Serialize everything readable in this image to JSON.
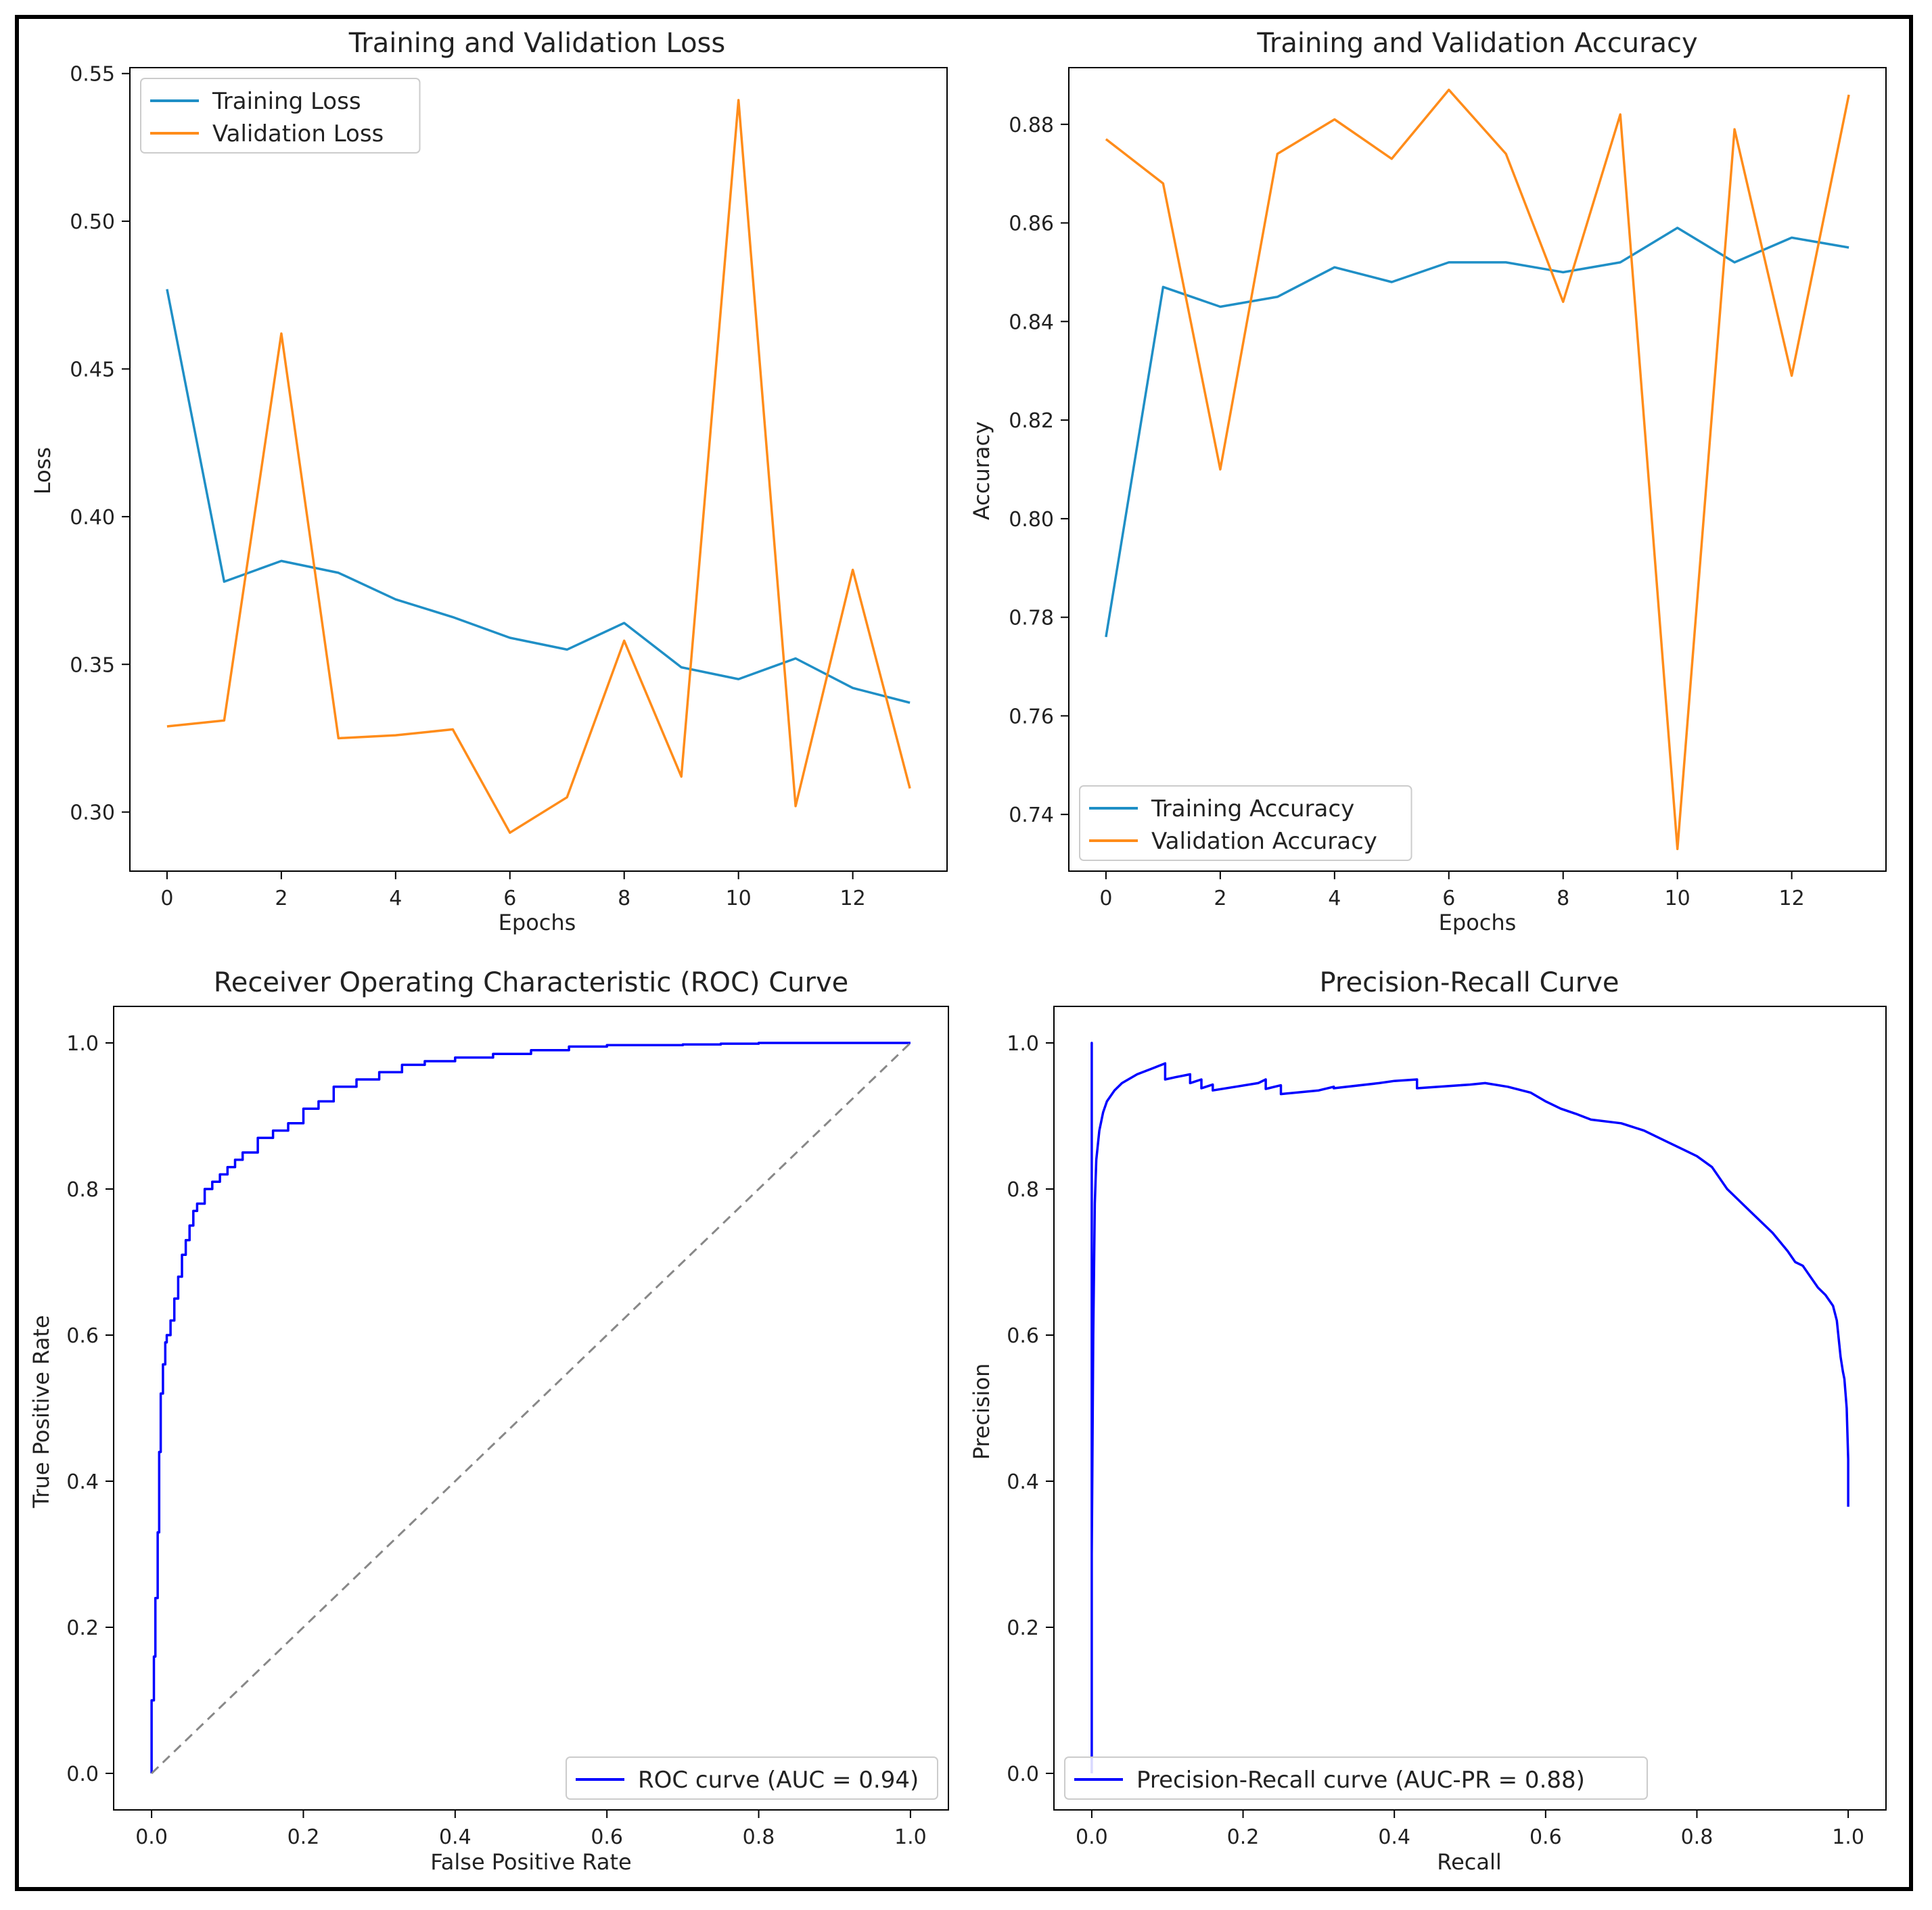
{
  "colors": {
    "training": "#1f8fc6",
    "validation": "#ff8c1a",
    "curve": "#0000ff",
    "diagonal": "#888888"
  },
  "chart_data": [
    {
      "id": "loss",
      "type": "line",
      "title": "Training and Validation Loss",
      "xlabel": "Epochs",
      "ylabel": "Loss",
      "xlim": [
        -0.65,
        13.65
      ],
      "ylim": [
        0.28,
        0.552
      ],
      "xticks": [
        0,
        2,
        4,
        6,
        8,
        10,
        12
      ],
      "xtick_labels": [
        "0",
        "2",
        "4",
        "6",
        "8",
        "10",
        "12"
      ],
      "yticks": [
        0.3,
        0.35,
        0.4,
        0.45,
        0.5,
        0.55
      ],
      "ytick_labels": [
        "0.30",
        "0.35",
        "0.40",
        "0.45",
        "0.50",
        "0.55"
      ],
      "legend_position": "top-left",
      "x": [
        0,
        1,
        2,
        3,
        4,
        5,
        6,
        7,
        8,
        9,
        10,
        11,
        12,
        13
      ],
      "series": [
        {
          "name": "Training Loss",
          "color_key": "training",
          "values": [
            0.477,
            0.378,
            0.385,
            0.381,
            0.372,
            0.366,
            0.359,
            0.355,
            0.364,
            0.349,
            0.345,
            0.352,
            0.342,
            0.337
          ]
        },
        {
          "name": "Validation Loss",
          "color_key": "validation",
          "values": [
            0.329,
            0.331,
            0.462,
            0.325,
            0.326,
            0.328,
            0.293,
            0.305,
            0.358,
            0.312,
            0.541,
            0.302,
            0.382,
            0.308
          ]
        }
      ]
    },
    {
      "id": "accuracy",
      "type": "line",
      "title": "Training and Validation Accuracy",
      "xlabel": "Epochs",
      "ylabel": "Accuracy",
      "xlim": [
        -0.65,
        13.65
      ],
      "ylim": [
        0.7285,
        0.8915
      ],
      "xticks": [
        0,
        2,
        4,
        6,
        8,
        10,
        12
      ],
      "xtick_labels": [
        "0",
        "2",
        "4",
        "6",
        "8",
        "10",
        "12"
      ],
      "yticks": [
        0.74,
        0.76,
        0.78,
        0.8,
        0.82,
        0.84,
        0.86,
        0.88
      ],
      "ytick_labels": [
        "0.74",
        "0.76",
        "0.78",
        "0.80",
        "0.82",
        "0.84",
        "0.86",
        "0.88"
      ],
      "legend_position": "bottom-left",
      "x": [
        0,
        1,
        2,
        3,
        4,
        5,
        6,
        7,
        8,
        9,
        10,
        11,
        12,
        13
      ],
      "series": [
        {
          "name": "Training Accuracy",
          "color_key": "training",
          "values": [
            0.776,
            0.847,
            0.843,
            0.845,
            0.851,
            0.848,
            0.852,
            0.852,
            0.85,
            0.852,
            0.859,
            0.852,
            0.857,
            0.855
          ]
        },
        {
          "name": "Validation Accuracy",
          "color_key": "validation",
          "values": [
            0.877,
            0.868,
            0.81,
            0.874,
            0.881,
            0.873,
            0.887,
            0.874,
            0.844,
            0.882,
            0.733,
            0.879,
            0.829,
            0.886
          ]
        }
      ]
    },
    {
      "id": "roc",
      "type": "line",
      "title": "Receiver Operating Characteristic (ROC) Curve",
      "xlabel": "False Positive Rate",
      "ylabel": "True Positive Rate",
      "xlim": [
        -0.05,
        1.05
      ],
      "ylim": [
        -0.05,
        1.05
      ],
      "xticks": [
        0.0,
        0.2,
        0.4,
        0.6,
        0.8,
        1.0
      ],
      "xtick_labels": [
        "0.0",
        "0.2",
        "0.4",
        "0.6",
        "0.8",
        "1.0"
      ],
      "yticks": [
        0.0,
        0.2,
        0.4,
        0.6,
        0.8,
        1.0
      ],
      "ytick_labels": [
        "0.0",
        "0.2",
        "0.4",
        "0.6",
        "0.8",
        "1.0"
      ],
      "legend_position": "bottom-right",
      "series": [
        {
          "name": "ROC curve (AUC = 0.94)",
          "color_key": "curve",
          "step": true,
          "x": [
            0.0,
            0.0,
            0.003,
            0.005,
            0.008,
            0.01,
            0.012,
            0.015,
            0.018,
            0.02,
            0.025,
            0.03,
            0.035,
            0.04,
            0.045,
            0.05,
            0.055,
            0.06,
            0.07,
            0.08,
            0.09,
            0.1,
            0.11,
            0.12,
            0.14,
            0.16,
            0.18,
            0.2,
            0.22,
            0.24,
            0.27,
            0.3,
            0.33,
            0.36,
            0.4,
            0.45,
            0.5,
            0.55,
            0.6,
            0.7,
            0.75,
            0.8,
            1.0
          ],
          "y": [
            0.0,
            0.1,
            0.16,
            0.24,
            0.33,
            0.44,
            0.52,
            0.56,
            0.59,
            0.6,
            0.62,
            0.65,
            0.68,
            0.71,
            0.73,
            0.75,
            0.77,
            0.78,
            0.8,
            0.81,
            0.82,
            0.83,
            0.84,
            0.85,
            0.87,
            0.88,
            0.89,
            0.91,
            0.92,
            0.94,
            0.95,
            0.96,
            0.97,
            0.975,
            0.98,
            0.985,
            0.99,
            0.995,
            0.997,
            0.998,
            0.999,
            1.0,
            1.0
          ]
        },
        {
          "name": "chance",
          "color_key": "diagonal",
          "dashed": true,
          "in_legend": false,
          "x": [
            0.0,
            1.0
          ],
          "y": [
            0.0,
            1.0
          ]
        }
      ]
    },
    {
      "id": "pr",
      "type": "line",
      "title": "Precision-Recall Curve",
      "xlabel": "Recall",
      "ylabel": "Precision",
      "xlim": [
        -0.05,
        1.05
      ],
      "ylim": [
        -0.05,
        1.05
      ],
      "xticks": [
        0.0,
        0.2,
        0.4,
        0.6,
        0.8,
        1.0
      ],
      "xtick_labels": [
        "0.0",
        "0.2",
        "0.4",
        "0.6",
        "0.8",
        "1.0"
      ],
      "yticks": [
        0.0,
        0.2,
        0.4,
        0.6,
        0.8,
        1.0
      ],
      "ytick_labels": [
        "0.0",
        "0.2",
        "0.4",
        "0.6",
        "0.8",
        "1.0"
      ],
      "legend_position": "bottom-left",
      "series": [
        {
          "name": "Precision-Recall curve (AUC-PR = 0.88)",
          "color_key": "curve",
          "x": [
            0.0,
            0.0,
            0.0,
            0.002,
            0.004,
            0.006,
            0.01,
            0.015,
            0.02,
            0.03,
            0.04,
            0.06,
            0.08,
            0.097,
            0.097,
            0.11,
            0.13,
            0.13,
            0.145,
            0.145,
            0.16,
            0.16,
            0.19,
            0.22,
            0.23,
            0.23,
            0.25,
            0.25,
            0.3,
            0.32,
            0.32,
            0.38,
            0.4,
            0.43,
            0.43,
            0.5,
            0.52,
            0.55,
            0.58,
            0.6,
            0.62,
            0.64,
            0.66,
            0.7,
            0.73,
            0.76,
            0.78,
            0.8,
            0.82,
            0.84,
            0.86,
            0.88,
            0.9,
            0.92,
            0.93,
            0.94,
            0.95,
            0.96,
            0.97,
            0.98,
            0.985,
            0.99,
            0.993,
            0.995,
            0.998,
            1.0,
            1.0
          ],
          "y": [
            0.0,
            1.0,
            0.3,
            0.6,
            0.78,
            0.84,
            0.88,
            0.905,
            0.92,
            0.935,
            0.945,
            0.957,
            0.965,
            0.972,
            0.95,
            0.953,
            0.957,
            0.945,
            0.95,
            0.938,
            0.943,
            0.935,
            0.94,
            0.945,
            0.95,
            0.937,
            0.942,
            0.93,
            0.935,
            0.94,
            0.938,
            0.945,
            0.948,
            0.95,
            0.938,
            0.943,
            0.945,
            0.94,
            0.932,
            0.92,
            0.91,
            0.903,
            0.895,
            0.89,
            0.88,
            0.865,
            0.855,
            0.845,
            0.83,
            0.8,
            0.78,
            0.76,
            0.74,
            0.715,
            0.7,
            0.695,
            0.68,
            0.665,
            0.655,
            0.64,
            0.62,
            0.57,
            0.55,
            0.54,
            0.5,
            0.43,
            0.365
          ]
        }
      ]
    }
  ]
}
